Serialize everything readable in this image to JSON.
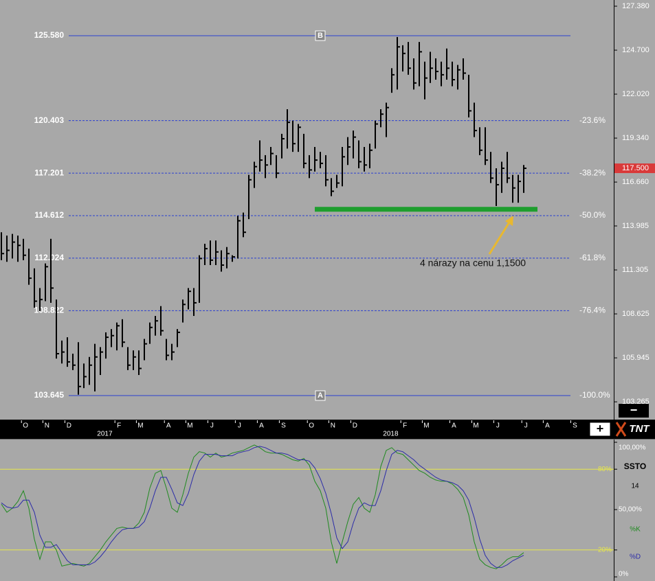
{
  "chart_data": [
    {
      "type": "ohlc",
      "xlim": [
        -0.25,
        111.375
      ],
      "ylim": [
        102.223,
        127.757
      ],
      "high": [
        113.6,
        113.4,
        113.5,
        113.4,
        113.2,
        112.6,
        111.4,
        110.2,
        111.7,
        113.2,
        109.5,
        107.0,
        107.2,
        106.2,
        106.9,
        105.6,
        106.0,
        106.8,
        106.6,
        107.5,
        107.7,
        108.1,
        108.3,
        106.6,
        106.4,
        106.4,
        107.1,
        108.1,
        108.5,
        109.1,
        107.1,
        106.8,
        107.7,
        109.5,
        110.2,
        110.2,
        112.2,
        112.9,
        113.1,
        113.1,
        112.5,
        112.7,
        112.2,
        114.6,
        114.8,
        117.1,
        117.9,
        119.2,
        118.3,
        118.8,
        118.3,
        119.6,
        121.1,
        120.4,
        120.2,
        119.6,
        118.3,
        118.8,
        118.5,
        118.3,
        116.9,
        117.1,
        118.8,
        119.4,
        119.8,
        119.2,
        118.8,
        119.0,
        120.4,
        121.1,
        121.5,
        123.6,
        125.5,
        125.0,
        125.2,
        124.2,
        125.2,
        124.0,
        124.6,
        124.2,
        124.0,
        124.8,
        124.0,
        123.8,
        124.2,
        123.2,
        121.5,
        120.0,
        120.0,
        118.5,
        117.5,
        117.9,
        118.5,
        117.1,
        117.1,
        117.7
      ],
      "low": [
        111.9,
        111.8,
        112.0,
        111.8,
        111.9,
        110.4,
        109.0,
        108.8,
        109.4,
        109.3,
        105.9,
        105.6,
        105.4,
        105.2,
        103.7,
        104.1,
        104.3,
        103.9,
        104.9,
        105.9,
        106.6,
        106.4,
        106.6,
        105.2,
        105.2,
        104.9,
        105.8,
        106.8,
        107.3,
        107.3,
        105.8,
        105.8,
        106.6,
        108.1,
        108.9,
        108.5,
        109.3,
        111.6,
        111.6,
        111.6,
        111.2,
        111.4,
        111.8,
        112.0,
        113.3,
        114.4,
        116.3,
        117.3,
        116.9,
        117.7,
        116.9,
        118.1,
        118.7,
        118.5,
        118.5,
        117.5,
        116.9,
        117.3,
        117.5,
        116.4,
        115.8,
        116.3,
        116.4,
        117.7,
        118.1,
        117.5,
        117.3,
        117.5,
        118.7,
        120.0,
        119.4,
        122.1,
        122.3,
        123.4,
        123.2,
        122.3,
        122.5,
        121.7,
        122.7,
        122.9,
        122.5,
        122.9,
        122.5,
        122.3,
        122.9,
        120.6,
        119.4,
        118.3,
        117.7,
        116.6,
        115.2,
        116.0,
        116.6,
        115.4,
        115.4,
        116.0
      ],
      "close": [
        112.3,
        112.5,
        113.0,
        112.8,
        112.2,
        110.8,
        109.4,
        109.5,
        111.5,
        110.2,
        106.2,
        106.3,
        105.7,
        105.5,
        104.2,
        104.8,
        105.5,
        106.0,
        106.3,
        107.2,
        107.3,
        107.9,
        106.9,
        105.5,
        106.0,
        105.3,
        106.8,
        107.8,
        108.2,
        107.6,
        106.1,
        106.3,
        107.5,
        109.2,
        110.0,
        109.3,
        112.0,
        112.6,
        111.9,
        112.4,
        111.6,
        112.3,
        112.1,
        114.3,
        113.6,
        116.8,
        117.6,
        118.0,
        117.7,
        118.4,
        117.2,
        119.3,
        120.3,
        119.0,
        120.0,
        117.8,
        117.4,
        118.0,
        117.8,
        116.8,
        116.1,
        116.6,
        118.2,
        118.8,
        119.4,
        117.9,
        117.7,
        118.6,
        120.2,
        120.8,
        121.2,
        123.2,
        124.9,
        124.5,
        123.6,
        122.7,
        124.6,
        123.0,
        123.6,
        123.4,
        123.2,
        123.6,
        122.9,
        123.5,
        123.3,
        121.0,
        119.8,
        118.6,
        118.0,
        116.9,
        116.5,
        117.5,
        116.9,
        116.3,
        116.7,
        117.5
      ],
      "yticks": [
        {
          "value": 127.38,
          "label": "127.380"
        },
        {
          "value": 124.7,
          "label": "124.700"
        },
        {
          "value": 122.02,
          "label": "122.020"
        },
        {
          "value": 119.34,
          "label": "119.340"
        },
        {
          "value": 116.66,
          "label": "116.660"
        },
        {
          "value": 113.985,
          "label": "113.985"
        },
        {
          "value": 111.305,
          "label": "111.305"
        },
        {
          "value": 108.625,
          "label": "108.625"
        },
        {
          "value": 105.945,
          "label": "105.945"
        },
        {
          "value": 103.265,
          "label": "103.265"
        }
      ],
      "xticks": [
        {
          "value": 4.4,
          "label": "O"
        },
        {
          "value": 8.3,
          "label": "N"
        },
        {
          "value": 12.3,
          "label": "D"
        },
        {
          "value": 21.4,
          "label": "F"
        },
        {
          "value": 25.3,
          "label": "M"
        },
        {
          "value": 30.4,
          "label": "A"
        },
        {
          "value": 34.3,
          "label": "M"
        },
        {
          "value": 38.3,
          "label": "J"
        },
        {
          "value": 43.3,
          "label": "J"
        },
        {
          "value": 47.3,
          "label": "A"
        },
        {
          "value": 51.3,
          "label": "S"
        },
        {
          "value": 56.4,
          "label": "O"
        },
        {
          "value": 60.3,
          "label": "N"
        },
        {
          "value": 64.3,
          "label": "D"
        },
        {
          "value": 73.4,
          "label": "F"
        },
        {
          "value": 77.3,
          "label": "M"
        },
        {
          "value": 82.3,
          "label": "A"
        },
        {
          "value": 86.3,
          "label": "M"
        },
        {
          "value": 90.3,
          "label": "J"
        },
        {
          "value": 95.4,
          "label": "J"
        },
        {
          "value": 99.3,
          "label": "A"
        },
        {
          "value": 104.3,
          "label": "S"
        }
      ],
      "year_ticks": [
        {
          "value": 18.8,
          "label": "2017"
        },
        {
          "value": 70.8,
          "label": "2018"
        }
      ],
      "levels": [
        {
          "value": 125.58,
          "label": "125.580",
          "tag": "B"
        },
        {
          "value": 120.403,
          "label": "120.403",
          "ratio": "-23.6%"
        },
        {
          "value": 117.201,
          "label": "117.201",
          "ratio": "-38.2%"
        },
        {
          "value": 114.612,
          "label": "114.612",
          "ratio": "-50.0%"
        },
        {
          "value": 112.024,
          "label": "112.024",
          "ratio": "-61.8%"
        },
        {
          "value": 108.822,
          "label": "108.822",
          "ratio": "-76.4%"
        },
        {
          "value": 103.645,
          "label": "103.645",
          "ratio": "-100.0%",
          "tag": "A"
        }
      ],
      "last_price": {
        "value": 117.5,
        "label": "117.500"
      },
      "support": {
        "value": 115.0,
        "from": 57,
        "to": 97.5,
        "color": "#1e9e2e"
      },
      "annotation": "4 nárazy na cenu 1,1500",
      "controls": [
        "−",
        "+"
      ],
      "logo": "TNT"
    },
    {
      "type": "line",
      "title": "SSTO",
      "period": 14,
      "xlim": [
        -0.25,
        111.375
      ],
      "ylim": [
        0,
        100
      ],
      "yticks": [
        {
          "value": 100,
          "label": "100,00%"
        },
        {
          "value": 80,
          "label": "80%"
        },
        {
          "value": 50,
          "label": "50,00%"
        },
        {
          "value": 20,
          "label": "20%"
        },
        {
          "value": 0,
          "label": "0%"
        }
      ],
      "lines": [
        80,
        20
      ],
      "series": [
        {
          "name": "%K",
          "color": "#1f8a1f",
          "values": [
            54,
            48,
            51,
            56,
            64,
            51,
            28,
            13,
            26,
            26,
            20,
            8,
            9,
            10,
            9,
            8,
            10,
            15,
            20,
            26,
            31,
            36,
            37,
            36,
            36,
            40,
            48,
            66,
            77,
            79,
            66,
            51,
            48,
            61,
            77,
            89,
            93,
            92,
            89,
            92,
            89,
            90,
            92,
            93,
            94,
            96,
            98,
            96,
            93,
            92,
            92,
            91,
            89,
            87,
            86,
            88,
            83,
            71,
            64,
            51,
            26,
            10,
            26,
            41,
            54,
            59,
            51,
            48,
            61,
            82,
            94,
            96,
            92,
            91,
            87,
            83,
            79,
            77,
            74,
            72,
            71,
            71,
            69,
            65,
            59,
            46,
            26,
            13,
            9,
            7,
            6,
            9,
            13,
            15,
            15,
            18
          ]
        },
        {
          "name": "%D",
          "color": "#2b2ba8",
          "values": [
            55,
            52,
            51,
            52,
            57,
            57,
            48,
            31,
            22,
            22,
            24,
            18,
            12,
            9,
            9,
            9,
            9,
            11,
            15,
            20,
            26,
            31,
            35,
            36,
            36,
            37,
            41,
            51,
            64,
            74,
            74,
            65,
            55,
            53,
            62,
            76,
            86,
            91,
            91,
            91,
            90,
            90,
            90,
            92,
            93,
            94,
            96,
            97,
            96,
            94,
            92,
            92,
            91,
            89,
            87,
            87,
            86,
            81,
            73,
            62,
            47,
            29,
            21,
            26,
            40,
            51,
            55,
            53,
            53,
            64,
            79,
            91,
            94,
            93,
            90,
            87,
            83,
            80,
            77,
            74,
            72,
            71,
            70,
            68,
            64,
            57,
            44,
            28,
            16,
            10,
            7,
            7,
            9,
            12,
            14,
            16
          ]
        }
      ]
    }
  ]
}
